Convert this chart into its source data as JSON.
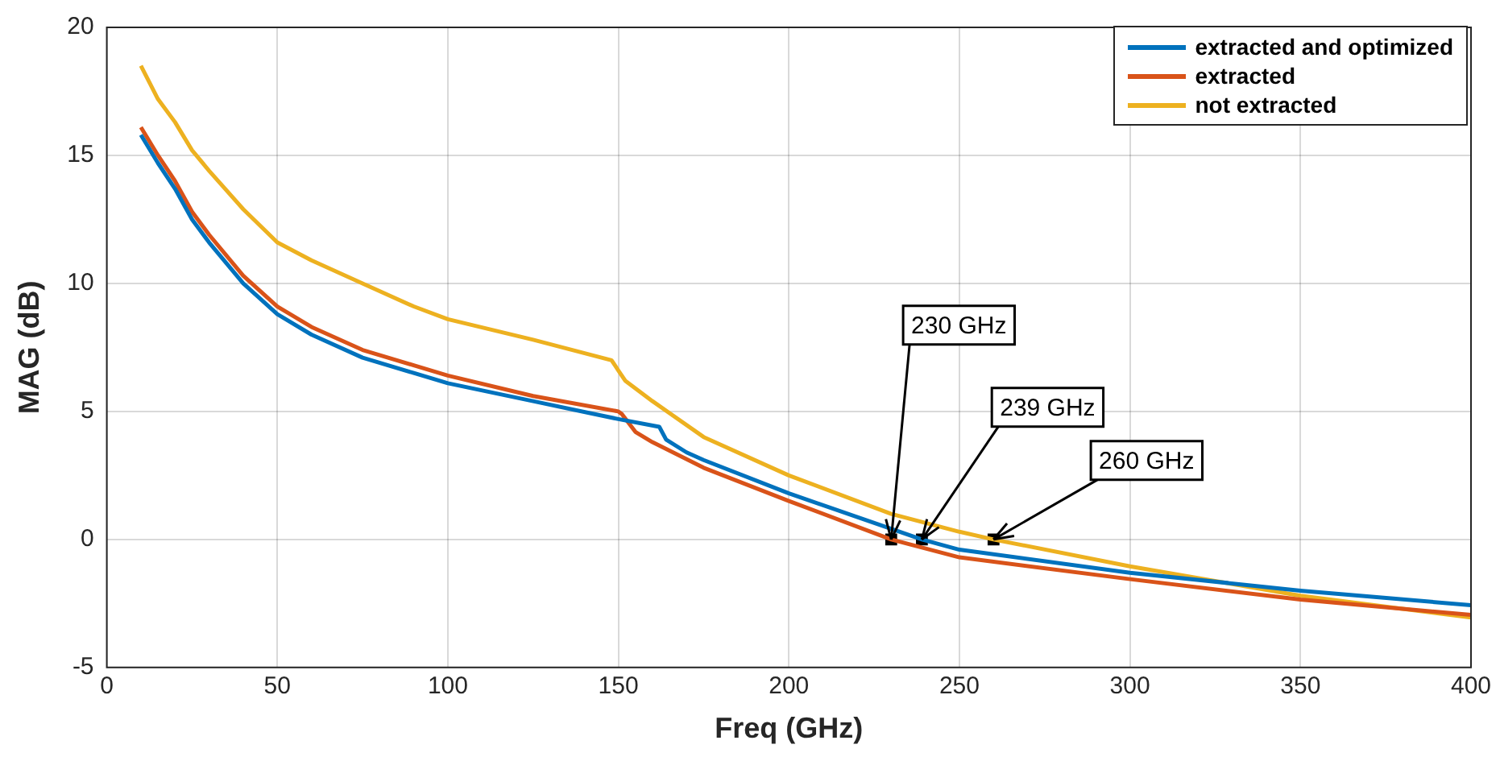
{
  "chart_data": {
    "type": "line",
    "xlabel": "Freq (GHz)",
    "ylabel": "MAG (dB)",
    "xlim": [
      0,
      400
    ],
    "xticks": [
      0,
      50,
      100,
      150,
      200,
      250,
      300,
      350,
      400
    ],
    "ylim": [
      -5,
      20
    ],
    "yticks": [
      -5,
      0,
      5,
      10,
      15,
      20
    ],
    "grid": true,
    "legend": "top right",
    "series": [
      {
        "name": "extracted and optimized",
        "color": "#0072bd",
        "x": [
          10,
          15,
          20,
          25,
          30,
          40,
          50,
          60,
          75,
          90,
          100,
          125,
          150,
          162,
          164,
          170,
          175,
          200,
          239,
          250,
          300,
          350,
          400
        ],
        "values": [
          15.8,
          14.7,
          13.7,
          12.5,
          11.6,
          10.0,
          8.8,
          8.0,
          7.1,
          6.5,
          6.1,
          5.4,
          4.7,
          4.4,
          3.9,
          3.4,
          3.1,
          1.8,
          0,
          -0.4,
          -1.3,
          -2.0,
          -2.57
        ]
      },
      {
        "name": "extracted",
        "color": "#d95319",
        "x": [
          10,
          15,
          20,
          25,
          30,
          40,
          50,
          60,
          75,
          90,
          100,
          125,
          150,
          151,
          155,
          160,
          175,
          200,
          230,
          250,
          300,
          350,
          400
        ],
        "values": [
          16.1,
          15.0,
          14.0,
          12.8,
          11.9,
          10.3,
          9.1,
          8.3,
          7.4,
          6.8,
          6.4,
          5.6,
          5.0,
          4.9,
          4.2,
          3.8,
          2.8,
          1.5,
          0,
          -0.7,
          -1.55,
          -2.35,
          -2.95
        ]
      },
      {
        "name": "not extracted",
        "color": "#edb120",
        "x": [
          10,
          15,
          20,
          25,
          30,
          40,
          50,
          60,
          75,
          90,
          100,
          125,
          148,
          150,
          152,
          160,
          175,
          200,
          230,
          250,
          260,
          300,
          350,
          400
        ],
        "values": [
          18.5,
          17.2,
          16.3,
          15.2,
          14.4,
          12.9,
          11.6,
          10.9,
          10.0,
          9.1,
          8.6,
          7.8,
          7.0,
          6.6,
          6.2,
          5.4,
          4.0,
          2.5,
          1.0,
          0.3,
          0,
          -1.05,
          -2.2,
          -3.05
        ]
      },
      {
        "type": "scatter",
        "color": "#000000",
        "marker": "square",
        "x": [
          230,
          239,
          260
        ],
        "values": [
          0,
          0,
          0
        ]
      }
    ],
    "annotations": [
      {
        "text": "230 GHz",
        "x": 230,
        "y": 0
      },
      {
        "text": "239 GHz",
        "x": 239,
        "y": 0
      },
      {
        "text": "260 GHz",
        "x": 260,
        "y": 0
      }
    ]
  }
}
